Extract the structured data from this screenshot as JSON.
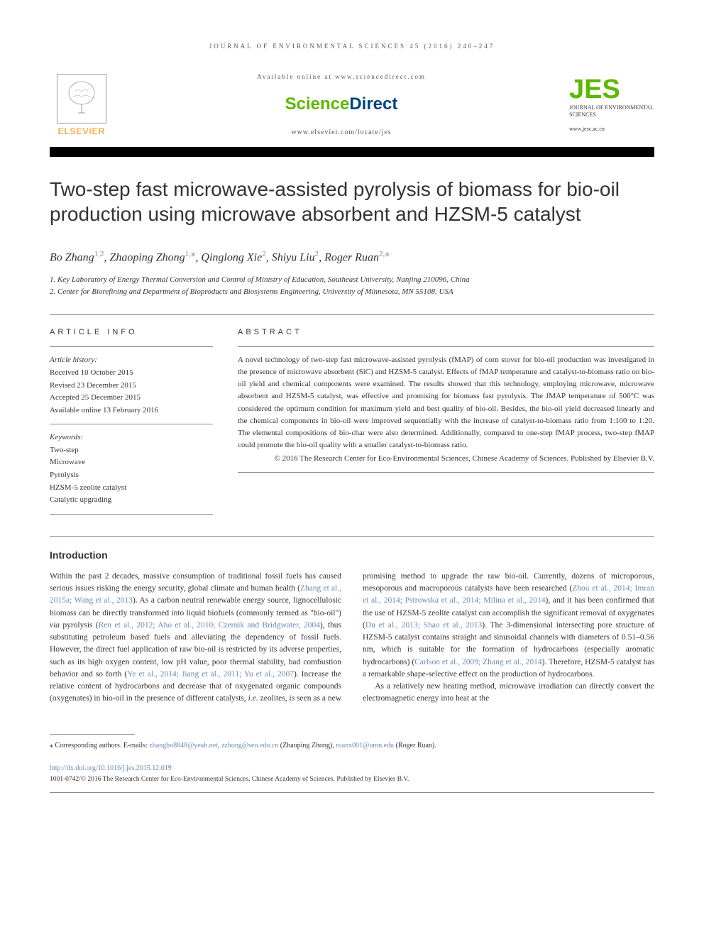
{
  "journal_header": "JOURNAL OF ENVIRONMENTAL SCIENCES 45 (2016) 240–247",
  "header": {
    "available": "Available online at www.sciencedirect.com",
    "sd_science": "Science",
    "sd_direct": "Direct",
    "locate": "www.elsevier.com/locate/jes",
    "elsevier": "ELSEVIER",
    "jes_mark": "JES",
    "jes_sub": "JOURNAL OF ENVIRONMENTAL SCIENCES",
    "jes_url": "www.jesc.ac.cn"
  },
  "title": "Two-step fast microwave-assisted pyrolysis of biomass for bio-oil production using microwave absorbent and HZSM-5 catalyst",
  "authors_html": "Bo Zhang<span class='sup'>1,2</span>, Zhaoping Zhong<span class='sup'>1,</span><span class='star'>⁎</span>, Qinglong Xie<span class='sup'>2</span>, Shiyu Liu<span class='sup'>2</span>, Roger Ruan<span class='sup'>2,</span><span class='star'>⁎</span>",
  "affiliations": {
    "a1": "1. Key Laboratory of Energy Thermal Conversion and Control of Ministry of Education, Southeast University, Nanjing 210096, China",
    "a2": "2. Center for Biorefining and Department of Bioproducts and Biosystems Engineering, University of Minnesota, MN 55108, USA"
  },
  "labels": {
    "article_info": "ARTICLE INFO",
    "abstract": "ABSTRACT",
    "history": "Article history:",
    "keywords": "Keywords:",
    "introduction": "Introduction"
  },
  "history": {
    "received": "Received 10 October 2015",
    "revised": "Revised 23 December 2015",
    "accepted": "Accepted 25 December 2015",
    "online": "Available online 13 February 2016"
  },
  "keywords": [
    "Two-step",
    "Microwave",
    "Pyrolysis",
    "HZSM-5 zeolite catalyst",
    "Catalytic upgrading"
  ],
  "abstract": "A novel technology of two-step fast microwave-assisted pyrolysis (fMAP) of corn stover for bio-oil production was investigated in the presence of microwave absorbent (SiC) and HZSM-5 catalyst. Effects of fMAP temperature and catalyst-to-biomass ratio on bio-oil yield and chemical components were examined. The results showed that this technology, employing microwave, microwave absorbent and HZSM-5 catalyst, was effective and promising for biomass fast pyrolysis. The fMAP temperature of 500°C was considered the optimum condition for maximum yield and best quality of bio-oil. Besides, the bio-oil yield decreased linearly and the chemical components in bio-oil were improved sequentially with the increase of catalyst-to-biomass ratio from 1:100 to 1:20. The elemental compositions of bio-char were also determined. Additionally, compared to one-step fMAP process, two-step fMAP could promote the bio-oil quality with a smaller catalyst-to-biomass ratio.",
  "abstract_rights": "© 2016 The Research Center for Eco-Environmental Sciences, Chinese Academy of Sciences. Published by Elsevier B.V.",
  "body_html": "<p>Within the past 2 decades, massive consumption of traditional fossil fuels has caused serious issues risking the energy security, global climate and human health (<span class='ref-link'>Zhang et al., 2015a; Wang et al., 2013</span>). As a carbon neutral renewable energy source, lignocellulosic biomass can be directly transformed into liquid biofuels (commonly termed as \"bio-oil\") <i>via</i> pyrolysis (<span class='ref-link'>Ren et al., 2012; Aho et al., 2010; Czernik and Bridgwater, 2004</span>), thus substituting petroleum based fuels and alleviating the dependency of fossil fuels. However, the direct fuel application of raw bio-oil is restricted by its adverse properties, such as its high oxygen content, low pH value, poor thermal stability, bad combustion behavior and so forth (<span class='ref-link'>Ye et al., 2014; Jiang et al., 2011; Yu et al., 2007</span>). Increase the relative content of hydrocarbons and decrease that of oxygenated organic compounds (oxygenates) in bio-oil in the presence of different catalysts, <i>i.e.</i> zeolites, is seen as a new promising method to upgrade the raw bio-oil. Currently, dozens of microporous, mesoporous and macroporous catalysts have been researched (<span class='ref-link'>Zhou et al., 2014; Imran et al., 2014; Pstrowska et al., 2014; Milina et al., 2014</span>), and it has been confirmed that the use of HZSM-5 zeolite catalyst can accomplish the significant removal of oxygenates (<span class='ref-link'>Du et al., 2013; Shao et al., 2013</span>). The 3-dimensional intersecting pore structure of HZSM-5 catalyst contains straight and sinusoidal channels with diameters of 0.51–0.56 nm, which is suitable for the formation of hydrocarbons (especially aromatic hydrocarbons) (<span class='ref-link'>Carlson et al., 2009; Zhang et al., 2014</span>). Therefore, HZSM-5 catalyst has a remarkable shape-selective effect on the production of hydrocarbons.</p><p>As a relatively new heating method, microwave irradiation can directly convert the electromagnetic energy into heat at the</p>",
  "footer": {
    "corresponding_label": "⁎ Corresponding authors.",
    "emails_label": "E-mails:",
    "email1": "zhangbo8848@yeah.net",
    "email2": "zzhong@seu.edu.cn",
    "email2_name": "(Zhaoping Zhong),",
    "email3": "ruanx001@umn.edu",
    "email3_name": "(Roger Ruan).",
    "doi": "http://dx.doi.org/10.1016/j.jes.2015.12.019",
    "issn_copyright": "1001-0742/© 2016 The Research Center for Eco-Environmental Sciences, Chinese Academy of Sciences. Published by Elsevier B.V."
  },
  "colors": {
    "link": "#6a8ab5",
    "green": "#5cb800",
    "orange": "#ff8800",
    "blue": "#00447c",
    "rule": "#888888",
    "text": "#333333",
    "bg": "#ffffff"
  }
}
